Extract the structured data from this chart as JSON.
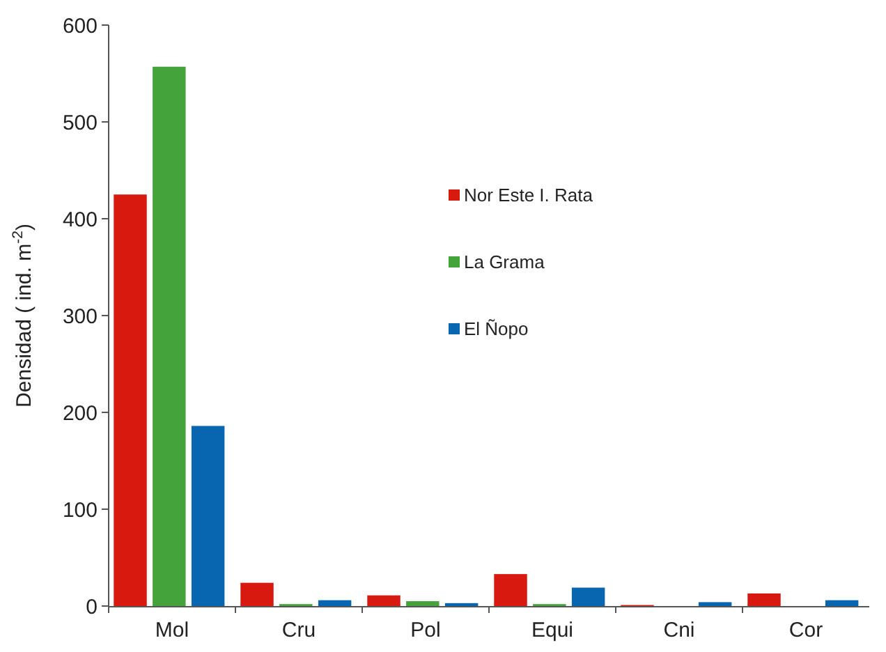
{
  "chart_data": {
    "type": "bar",
    "ylabel": "Densidad ( ind. m$^{-2}$)",
    "categories": [
      "Mol",
      "Cru",
      "Pol",
      "Equi",
      "Cni",
      "Cor"
    ],
    "series": [
      {
        "name": "Nor Este I. Rata",
        "color": "#d7190f",
        "values": [
          425,
          24,
          11,
          33,
          1,
          13
        ]
      },
      {
        "name": "La Grama",
        "color": "#45a33c",
        "values": [
          557,
          2,
          5,
          2,
          0,
          0
        ]
      },
      {
        "name": "El Ñopo",
        "color": "#0866b0",
        "values": [
          186,
          6,
          3,
          19,
          4,
          6
        ]
      }
    ],
    "ylim": [
      0,
      600
    ],
    "yticks": [
      0,
      100,
      200,
      300,
      400,
      500,
      600
    ],
    "legend": "center"
  }
}
